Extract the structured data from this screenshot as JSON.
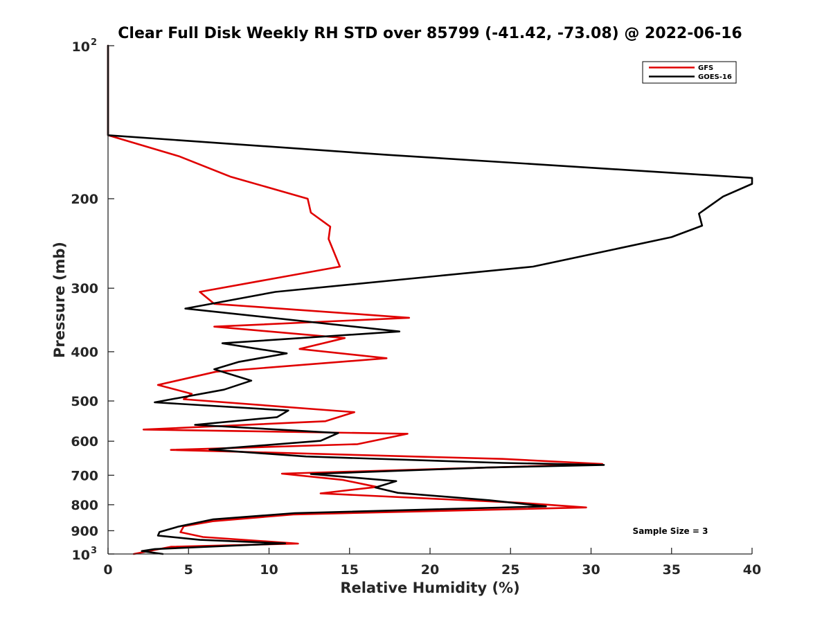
{
  "chart_data": {
    "type": "line",
    "title": "Clear Full Disk Weekly RH STD over 85799 (-41.42, -73.08) @ 2022-06-16",
    "xlabel": "Relative Humidity (%)",
    "ylabel": "Pressure (mb)",
    "xlim": [
      0,
      40
    ],
    "ylim": [
      100,
      1000
    ],
    "y_scale": "log",
    "y_reversed": true,
    "x_ticks": [
      "0",
      "5",
      "10",
      "15",
      "20",
      "25",
      "30",
      "35",
      "40"
    ],
    "y_ticks": [
      {
        "value": 100,
        "base": "10",
        "exp": "2"
      },
      {
        "value": 200,
        "label": "200"
      },
      {
        "value": 300,
        "label": "300"
      },
      {
        "value": 400,
        "label": "400"
      },
      {
        "value": 500,
        "label": "500"
      },
      {
        "value": 600,
        "label": "600"
      },
      {
        "value": 700,
        "label": "700"
      },
      {
        "value": 800,
        "label": "800"
      },
      {
        "value": 900,
        "label": "900"
      },
      {
        "value": 1000,
        "base": "10",
        "exp": "3"
      }
    ],
    "grid": false,
    "legend_position": "top-right",
    "annotation": "Sample Size = 3",
    "series": [
      {
        "name": "GFS",
        "color": "#e00000",
        "points": [
          [
            0,
            100
          ],
          [
            0,
            150
          ],
          [
            4.4,
            165
          ],
          [
            7.6,
            181
          ],
          [
            12.4,
            200
          ],
          [
            12.6,
            213
          ],
          [
            13.8,
            227
          ],
          [
            13.7,
            240
          ],
          [
            14.4,
            272
          ],
          [
            5.7,
            305
          ],
          [
            6.6,
            322
          ],
          [
            18.7,
            343
          ],
          [
            6.6,
            357
          ],
          [
            14.7,
            376
          ],
          [
            11.9,
            395
          ],
          [
            17.3,
            412
          ],
          [
            6.7,
            438
          ],
          [
            3.1,
            465
          ],
          [
            5.2,
            484
          ],
          [
            4.7,
            496
          ],
          [
            15.3,
            526
          ],
          [
            13.5,
            548
          ],
          [
            2.2,
            569
          ],
          [
            18.6,
            580
          ],
          [
            15.5,
            608
          ],
          [
            3.9,
            624
          ],
          [
            24.5,
            650
          ],
          [
            30.7,
            665
          ],
          [
            25.0,
            674
          ],
          [
            10.8,
            695
          ],
          [
            14.6,
            715
          ],
          [
            16.7,
            738
          ],
          [
            13.2,
            760
          ],
          [
            25.6,
            793
          ],
          [
            29.7,
            810
          ],
          [
            11.5,
            836
          ],
          [
            6.5,
            862
          ],
          [
            4.7,
            882
          ],
          [
            4.5,
            906
          ],
          [
            5.9,
            926
          ],
          [
            11.8,
            954
          ],
          [
            3.9,
            968
          ],
          [
            1.6,
            1000
          ]
        ]
      },
      {
        "name": "GOES-16",
        "color": "#000000",
        "points": [
          [
            0,
            100
          ],
          [
            0,
            150
          ],
          [
            17.4,
            164
          ],
          [
            40,
            182
          ],
          [
            40,
            187
          ],
          [
            38.2,
            198
          ],
          [
            36.7,
            214
          ],
          [
            36.9,
            226
          ],
          [
            35.0,
            238
          ],
          [
            26.4,
            272
          ],
          [
            10.4,
            305
          ],
          [
            4.8,
            329
          ],
          [
            18.1,
            365
          ],
          [
            7.1,
            385
          ],
          [
            11.1,
            403
          ],
          [
            8.1,
            419
          ],
          [
            6.6,
            433
          ],
          [
            8.9,
            456
          ],
          [
            7.2,
            475
          ],
          [
            2.9,
            503
          ],
          [
            11.2,
            522
          ],
          [
            10.5,
            538
          ],
          [
            5.4,
            557
          ],
          [
            14.3,
            578
          ],
          [
            13.2,
            599
          ],
          [
            6.3,
            623
          ],
          [
            12.3,
            643
          ],
          [
            24.5,
            662
          ],
          [
            30.8,
            668
          ],
          [
            23.5,
            676
          ],
          [
            12.6,
            696
          ],
          [
            17.9,
            719
          ],
          [
            16.6,
            740
          ],
          [
            18.0,
            758
          ],
          [
            23.7,
            784
          ],
          [
            27.2,
            806
          ],
          [
            11.6,
            831
          ],
          [
            6.5,
            855
          ],
          [
            4.4,
            883
          ],
          [
            3.2,
            905
          ],
          [
            3.1,
            920
          ],
          [
            5.7,
            938
          ],
          [
            11.0,
            953
          ],
          [
            2.9,
            978
          ],
          [
            2.1,
            987
          ],
          [
            3.4,
            1000
          ]
        ]
      }
    ]
  }
}
